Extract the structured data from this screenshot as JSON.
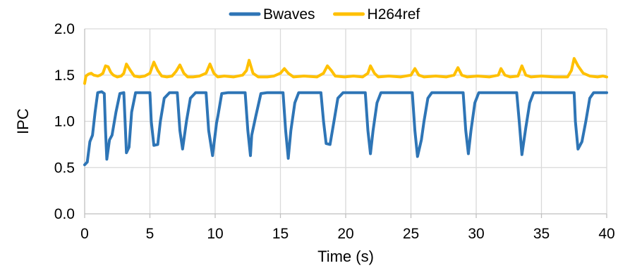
{
  "chart_data": {
    "type": "line",
    "xlabel": "Time (s)",
    "ylabel": "IPC",
    "xlim": [
      0,
      40
    ],
    "ylim": [
      0,
      2
    ],
    "x_ticks": [
      0,
      5,
      10,
      15,
      20,
      25,
      30,
      35,
      40
    ],
    "x_tick_labels": [
      "0",
      "5",
      "10",
      "15",
      "20",
      "25",
      "30",
      "35",
      "40"
    ],
    "y_ticks": [
      0,
      0.5,
      1,
      1.5,
      2
    ],
    "y_tick_labels": [
      "0.0",
      "0.5",
      "1.0",
      "1.5",
      "2.0"
    ],
    "grid": true,
    "legend_position": "top",
    "series": [
      {
        "name": "Bwaves",
        "color": "#2E75B6",
        "points": [
          [
            0,
            0.53
          ],
          [
            0.2,
            0.56
          ],
          [
            0.4,
            0.78
          ],
          [
            0.6,
            0.85
          ],
          [
            0.8,
            1.1
          ],
          [
            1.0,
            1.31
          ],
          [
            1.3,
            1.32
          ],
          [
            1.5,
            1.3
          ],
          [
            1.6,
            0.9
          ],
          [
            1.7,
            0.59
          ],
          [
            1.9,
            0.8
          ],
          [
            2.1,
            0.85
          ],
          [
            2.4,
            1.1
          ],
          [
            2.7,
            1.3
          ],
          [
            3.0,
            1.31
          ],
          [
            3.1,
            1.0
          ],
          [
            3.2,
            0.66
          ],
          [
            3.4,
            0.72
          ],
          [
            3.6,
            1.1
          ],
          [
            3.9,
            1.31
          ],
          [
            4.5,
            1.31
          ],
          [
            5.0,
            1.31
          ],
          [
            5.1,
            1.0
          ],
          [
            5.3,
            0.74
          ],
          [
            5.6,
            0.75
          ],
          [
            5.8,
            1.0
          ],
          [
            6.1,
            1.25
          ],
          [
            6.5,
            1.31
          ],
          [
            7.1,
            1.31
          ],
          [
            7.3,
            0.9
          ],
          [
            7.5,
            0.7
          ],
          [
            7.8,
            1.0
          ],
          [
            8.1,
            1.25
          ],
          [
            8.5,
            1.31
          ],
          [
            9.3,
            1.31
          ],
          [
            9.5,
            0.9
          ],
          [
            9.8,
            0.63
          ],
          [
            10.1,
            0.98
          ],
          [
            10.2,
            1.05
          ],
          [
            10.5,
            1.3
          ],
          [
            11.0,
            1.31
          ],
          [
            12.3,
            1.31
          ],
          [
            12.5,
            0.9
          ],
          [
            12.7,
            0.63
          ],
          [
            12.8,
            0.85
          ],
          [
            13.1,
            1.05
          ],
          [
            13.5,
            1.3
          ],
          [
            14.0,
            1.31
          ],
          [
            15.2,
            1.31
          ],
          [
            15.4,
            0.9
          ],
          [
            15.6,
            0.6
          ],
          [
            15.8,
            0.9
          ],
          [
            16.1,
            1.2
          ],
          [
            16.4,
            1.31
          ],
          [
            17.0,
            1.31
          ],
          [
            18.1,
            1.31
          ],
          [
            18.3,
            1.0
          ],
          [
            18.5,
            0.76
          ],
          [
            18.8,
            0.75
          ],
          [
            19.1,
            1.0
          ],
          [
            19.4,
            1.25
          ],
          [
            19.8,
            1.31
          ],
          [
            21.5,
            1.31
          ],
          [
            21.7,
            0.9
          ],
          [
            21.9,
            0.65
          ],
          [
            22.1,
            0.9
          ],
          [
            22.4,
            1.2
          ],
          [
            22.7,
            1.31
          ],
          [
            23.5,
            1.31
          ],
          [
            25.1,
            1.31
          ],
          [
            25.3,
            0.9
          ],
          [
            25.5,
            0.62
          ],
          [
            25.8,
            0.8
          ],
          [
            26.0,
            1.0
          ],
          [
            26.3,
            1.25
          ],
          [
            26.6,
            1.31
          ],
          [
            27.5,
            1.31
          ],
          [
            29.0,
            1.31
          ],
          [
            29.2,
            0.9
          ],
          [
            29.4,
            0.65
          ],
          [
            29.6,
            0.9
          ],
          [
            29.9,
            1.2
          ],
          [
            30.2,
            1.31
          ],
          [
            31.0,
            1.31
          ],
          [
            33.1,
            1.31
          ],
          [
            33.3,
            1.0
          ],
          [
            33.5,
            0.64
          ],
          [
            33.8,
            0.93
          ],
          [
            34.1,
            1.2
          ],
          [
            34.4,
            1.31
          ],
          [
            35.5,
            1.31
          ],
          [
            37.5,
            1.31
          ],
          [
            37.6,
            1.0
          ],
          [
            37.8,
            0.7
          ],
          [
            38.1,
            0.78
          ],
          [
            38.4,
            1.0
          ],
          [
            38.7,
            1.25
          ],
          [
            39.0,
            1.31
          ],
          [
            40.0,
            1.31
          ]
        ]
      },
      {
        "name": "H264ref",
        "color": "#FFC000",
        "points": [
          [
            0,
            1.41
          ],
          [
            0.1,
            1.49
          ],
          [
            0.3,
            1.51
          ],
          [
            0.5,
            1.52
          ],
          [
            0.7,
            1.5
          ],
          [
            1.0,
            1.49
          ],
          [
            1.2,
            1.5
          ],
          [
            1.4,
            1.52
          ],
          [
            1.6,
            1.6
          ],
          [
            1.8,
            1.59
          ],
          [
            2.0,
            1.53
          ],
          [
            2.2,
            1.5
          ],
          [
            2.5,
            1.48
          ],
          [
            2.8,
            1.49
          ],
          [
            3.0,
            1.52
          ],
          [
            3.2,
            1.62
          ],
          [
            3.5,
            1.55
          ],
          [
            3.8,
            1.49
          ],
          [
            4.2,
            1.48
          ],
          [
            4.6,
            1.49
          ],
          [
            5.0,
            1.52
          ],
          [
            5.3,
            1.64
          ],
          [
            5.6,
            1.55
          ],
          [
            5.9,
            1.49
          ],
          [
            6.3,
            1.48
          ],
          [
            6.7,
            1.49
          ],
          [
            7.0,
            1.54
          ],
          [
            7.3,
            1.61
          ],
          [
            7.6,
            1.52
          ],
          [
            7.9,
            1.48
          ],
          [
            8.3,
            1.48
          ],
          [
            8.8,
            1.49
          ],
          [
            9.3,
            1.52
          ],
          [
            9.6,
            1.62
          ],
          [
            9.9,
            1.52
          ],
          [
            10.2,
            1.48
          ],
          [
            10.7,
            1.49
          ],
          [
            11.4,
            1.48
          ],
          [
            12.1,
            1.5
          ],
          [
            12.4,
            1.55
          ],
          [
            12.6,
            1.66
          ],
          [
            12.9,
            1.52
          ],
          [
            13.3,
            1.48
          ],
          [
            14.0,
            1.48
          ],
          [
            14.5,
            1.49
          ],
          [
            15.0,
            1.52
          ],
          [
            15.3,
            1.57
          ],
          [
            15.6,
            1.52
          ],
          [
            16.0,
            1.48
          ],
          [
            16.8,
            1.49
          ],
          [
            17.8,
            1.48
          ],
          [
            18.3,
            1.52
          ],
          [
            18.6,
            1.6
          ],
          [
            18.9,
            1.55
          ],
          [
            19.2,
            1.49
          ],
          [
            19.9,
            1.48
          ],
          [
            20.6,
            1.49
          ],
          [
            21.3,
            1.48
          ],
          [
            21.7,
            1.52
          ],
          [
            21.9,
            1.6
          ],
          [
            22.2,
            1.52
          ],
          [
            22.5,
            1.48
          ],
          [
            23.3,
            1.49
          ],
          [
            24.2,
            1.48
          ],
          [
            25.0,
            1.5
          ],
          [
            25.3,
            1.57
          ],
          [
            25.6,
            1.5
          ],
          [
            26.0,
            1.48
          ],
          [
            26.9,
            1.49
          ],
          [
            27.7,
            1.48
          ],
          [
            28.3,
            1.5
          ],
          [
            28.6,
            1.58
          ],
          [
            28.9,
            1.5
          ],
          [
            29.3,
            1.48
          ],
          [
            30.1,
            1.49
          ],
          [
            31.0,
            1.48
          ],
          [
            31.7,
            1.5
          ],
          [
            31.9,
            1.57
          ],
          [
            32.2,
            1.5
          ],
          [
            32.6,
            1.48
          ],
          [
            33.2,
            1.49
          ],
          [
            33.5,
            1.6
          ],
          [
            33.8,
            1.5
          ],
          [
            34.2,
            1.48
          ],
          [
            35.0,
            1.49
          ],
          [
            36.0,
            1.48
          ],
          [
            37.0,
            1.48
          ],
          [
            37.3,
            1.55
          ],
          [
            37.5,
            1.68
          ],
          [
            37.8,
            1.6
          ],
          [
            38.2,
            1.52
          ],
          [
            38.7,
            1.49
          ],
          [
            39.3,
            1.48
          ],
          [
            39.7,
            1.49
          ],
          [
            40.0,
            1.48
          ]
        ]
      }
    ]
  }
}
